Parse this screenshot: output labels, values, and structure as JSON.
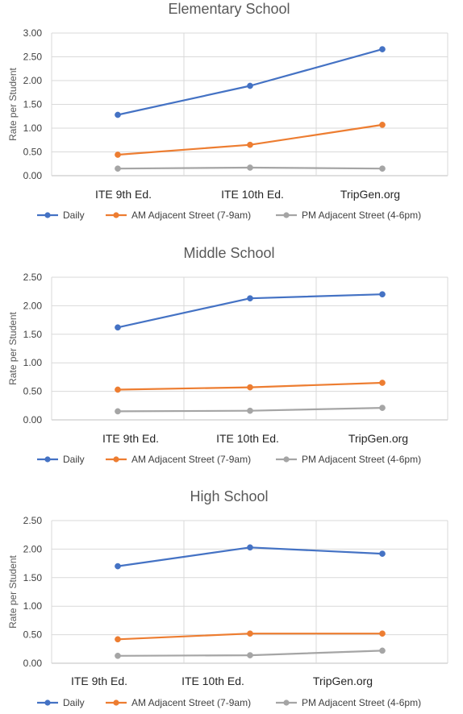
{
  "chart_data": [
    {
      "type": "line",
      "title": "Elementary School",
      "xlabel": "",
      "ylabel": "Rate per Student",
      "categories": [
        "ITE 9th Ed.",
        "ITE 10th Ed.",
        "TripGen.org"
      ],
      "ylim": [
        0,
        3.0
      ],
      "yticks": [
        "0.00",
        "0.50",
        "1.00",
        "1.50",
        "2.00",
        "2.50",
        "3.00"
      ],
      "grid": true,
      "legend": "bottom",
      "series": [
        {
          "name": "Daily",
          "color": "#4472C4",
          "values": [
            1.28,
            1.89,
            2.66
          ]
        },
        {
          "name": "AM Adjacent Street (7-9am)",
          "color": "#ED7D31",
          "values": [
            0.44,
            0.65,
            1.07
          ]
        },
        {
          "name": "PM Adjacent Street (4-6pm)",
          "color": "#A5A5A5",
          "values": [
            0.15,
            0.17,
            0.15
          ]
        }
      ]
    },
    {
      "type": "line",
      "title": "Middle School",
      "xlabel": "",
      "ylabel": "Rate per Student",
      "categories": [
        "ITE 9th Ed.",
        "ITE 10th Ed.",
        "TripGen.org"
      ],
      "ylim": [
        0,
        2.5
      ],
      "yticks": [
        "0.00",
        "0.50",
        "1.00",
        "1.50",
        "2.00",
        "2.50"
      ],
      "grid": true,
      "legend": "bottom",
      "series": [
        {
          "name": "Daily",
          "color": "#4472C4",
          "values": [
            1.62,
            2.13,
            2.2
          ]
        },
        {
          "name": "AM Adjacent Street (7-9am)",
          "color": "#ED7D31",
          "values": [
            0.53,
            0.57,
            0.65
          ]
        },
        {
          "name": "PM Adjacent Street (4-6pm)",
          "color": "#A5A5A5",
          "values": [
            0.15,
            0.16,
            0.21
          ]
        }
      ]
    },
    {
      "type": "line",
      "title": "High School",
      "xlabel": "",
      "ylabel": "Rate per Student",
      "categories": [
        "ITE 9th Ed.",
        "ITE 10th Ed.",
        "TripGen.org"
      ],
      "ylim": [
        0,
        2.5
      ],
      "yticks": [
        "0.00",
        "0.50",
        "1.00",
        "1.50",
        "2.00",
        "2.50"
      ],
      "grid": true,
      "legend": "bottom",
      "series": [
        {
          "name": "Daily",
          "color": "#4472C4",
          "values": [
            1.7,
            2.03,
            1.92
          ]
        },
        {
          "name": "AM Adjacent Street (7-9am)",
          "color": "#ED7D31",
          "values": [
            0.42,
            0.52,
            0.52
          ]
        },
        {
          "name": "PM Adjacent Street (4-6pm)",
          "color": "#A5A5A5",
          "values": [
            0.13,
            0.14,
            0.22
          ]
        }
      ]
    }
  ]
}
